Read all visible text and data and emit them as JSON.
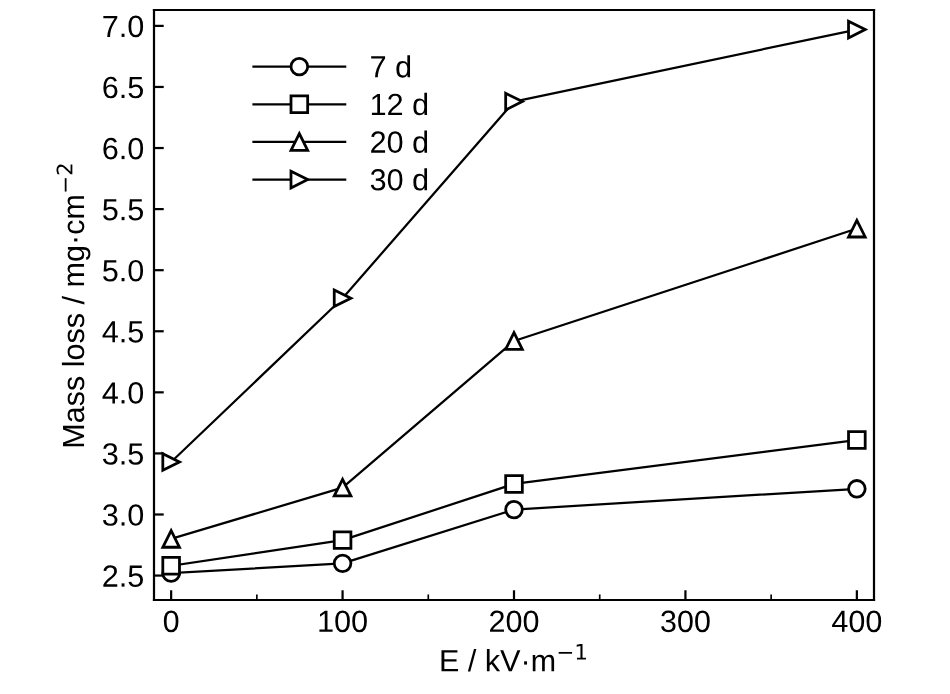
{
  "chart_data": {
    "type": "line",
    "xlabel": "E / kV·m$^{−1}$",
    "ylabel": "Mass loss / mg·cm$^{−2}$",
    "x": [
      0,
      100,
      200,
      400
    ],
    "series": [
      {
        "name": "7 d",
        "color": "#000000",
        "marker": "circle",
        "values": [
          2.52,
          2.6,
          3.04,
          3.21
        ]
      },
      {
        "name": "12 d",
        "color": "#000000",
        "marker": "square",
        "values": [
          2.58,
          2.79,
          3.25,
          3.61
        ]
      },
      {
        "name": "20 d",
        "color": "#000000",
        "marker": "triangle",
        "values": [
          2.8,
          3.22,
          4.42,
          5.34
        ]
      },
      {
        "name": "30 d",
        "color": "#000000",
        "marker": "triangle_right",
        "values": [
          3.43,
          4.77,
          6.38,
          6.97
        ]
      }
    ],
    "xlim": [
      -10,
      410
    ],
    "xticks": [
      0,
      100,
      200,
      300,
      400
    ],
    "ylim": [
      2.3,
      7.13
    ],
    "yticks": [
      {
        "value": 2.5,
        "label": "2.5"
      },
      {
        "value": 3.0,
        "label": "3.0"
      },
      {
        "value": 3.5,
        "label": "3.5"
      },
      {
        "value": 4.0,
        "label": "4.0"
      },
      {
        "value": 4.5,
        "label": "4.5"
      },
      {
        "value": 5.0,
        "label": "5.0"
      },
      {
        "value": 5.5,
        "label": "5.5"
      },
      {
        "value": 6.0,
        "label": "6.0"
      },
      {
        "value": 6.5,
        "label": "6.5"
      },
      {
        "value": 7.0,
        "label": "7.0"
      }
    ],
    "grid": false,
    "legend": "top left",
    "line_style": "solid"
  }
}
